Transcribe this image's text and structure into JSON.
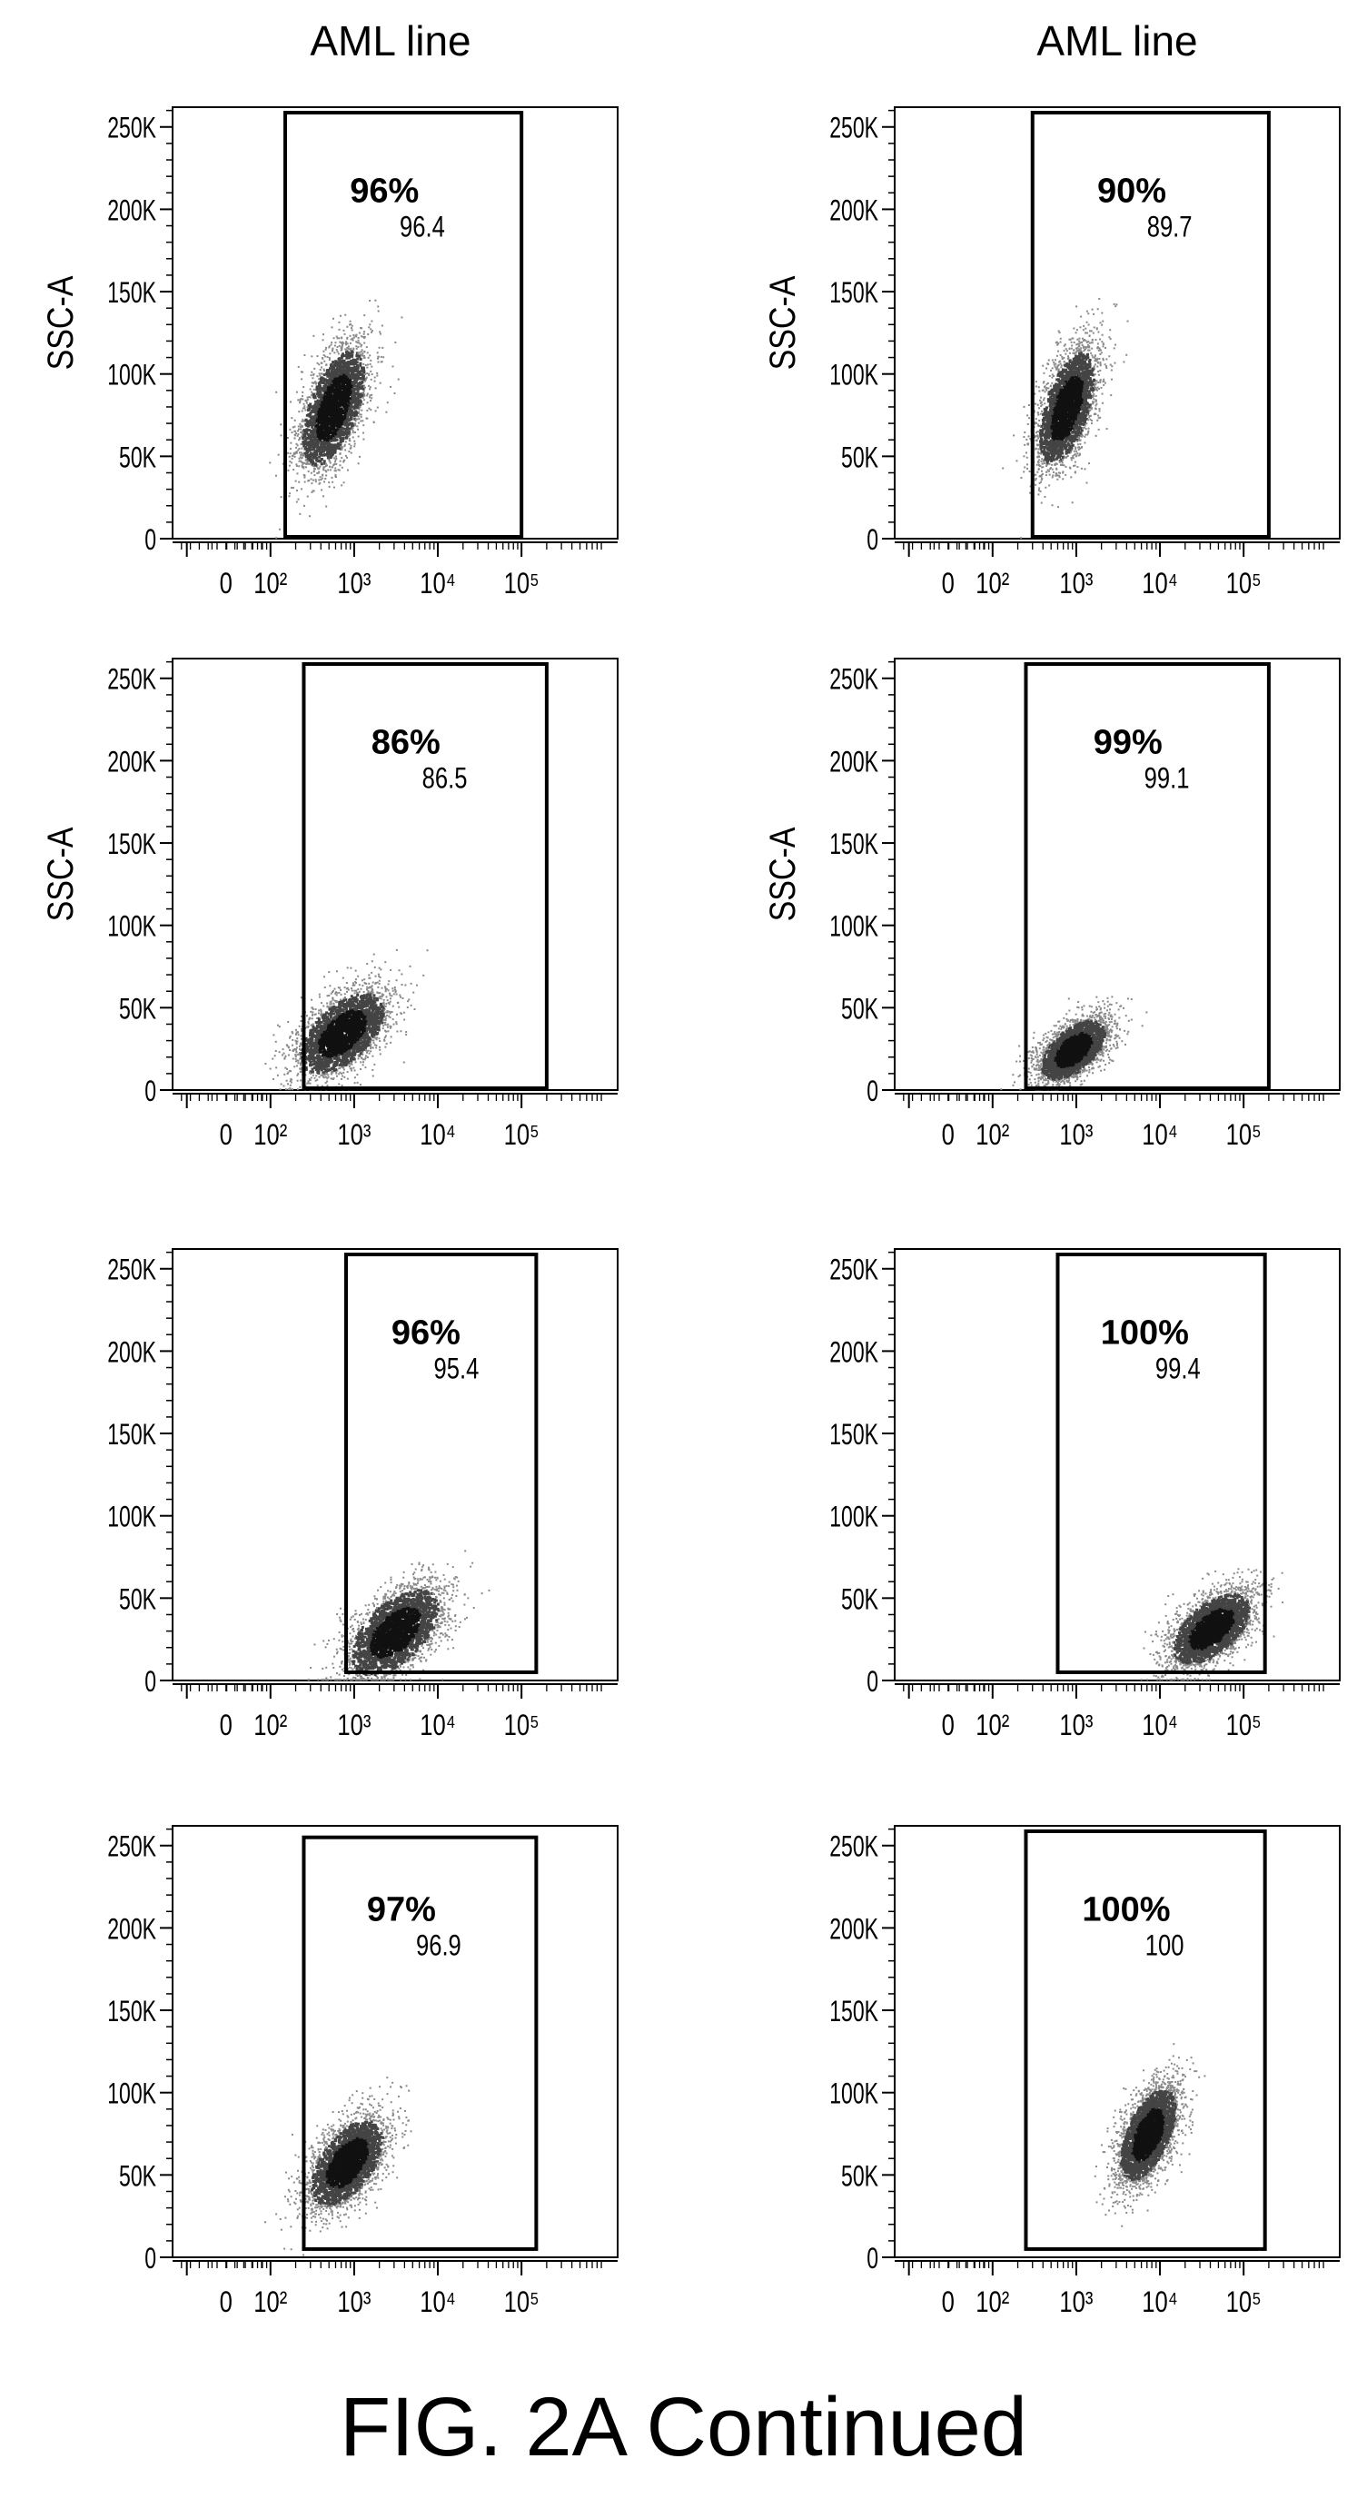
{
  "column_titles": [
    "AML line",
    "AML line"
  ],
  "figure_caption": "FIG. 2A Continued",
  "chart_data": [
    {
      "type": "scatter",
      "row": 1,
      "col": 1,
      "ylabel": "SSC-A",
      "yticks": [
        "0",
        "50K",
        "100K",
        "150K",
        "200K",
        "250K"
      ],
      "xticks": [
        "0",
        "10²",
        "10³",
        "10⁴",
        "10⁵"
      ],
      "gate": {
        "x": [
          150,
          100000
        ],
        "y": [
          0,
          262000
        ]
      },
      "gate_percent": "96%",
      "gate_value": "96.4",
      "cluster": {
        "x": [
          150,
          2000
        ],
        "y": [
          28000,
          135000
        ],
        "center": [
          550,
          80000
        ]
      }
    },
    {
      "type": "scatter",
      "row": 1,
      "col": 2,
      "ylabel": "SSC-A",
      "yticks": [
        "0",
        "50K",
        "100K",
        "150K",
        "200K",
        "250K"
      ],
      "xticks": [
        "0",
        "10²",
        "10³",
        "10⁴",
        "10⁵"
      ],
      "gate": {
        "x": [
          300,
          200000
        ],
        "y": [
          0,
          262000
        ]
      },
      "gate_percent": "90%",
      "gate_value": "89.7",
      "cluster": {
        "x": [
          220,
          2200
        ],
        "y": [
          35000,
          140000
        ],
        "center": [
          750,
          80000
        ]
      }
    },
    {
      "type": "scatter",
      "row": 2,
      "col": 1,
      "ylabel": "SSC-A",
      "yticks": [
        "0",
        "50K",
        "100K",
        "150K",
        "200K",
        "250K"
      ],
      "xticks": [
        "0",
        "10²",
        "10³",
        "10⁴",
        "10⁵"
      ],
      "gate": {
        "x": [
          250,
          200000
        ],
        "y": [
          0,
          262000
        ]
      },
      "gate_percent": "86%",
      "gate_value": "86.5",
      "cluster": {
        "x": [
          120,
          4000
        ],
        "y": [
          10000,
          85000
        ],
        "center": [
          700,
          35000
        ]
      }
    },
    {
      "type": "scatter",
      "row": 2,
      "col": 2,
      "ylabel": "SSC-A",
      "yticks": [
        "0",
        "50K",
        "100K",
        "150K",
        "200K",
        "250K"
      ],
      "xticks": [
        "0",
        "10²",
        "10³",
        "10⁴",
        "10⁵"
      ],
      "gate": {
        "x": [
          250,
          200000
        ],
        "y": [
          0,
          262000
        ]
      },
      "gate_percent": "99%",
      "gate_value": "99.1",
      "cluster": {
        "x": [
          200,
          3000
        ],
        "y": [
          10000,
          65000
        ],
        "center": [
          900,
          25000
        ]
      }
    },
    {
      "type": "scatter",
      "row": 3,
      "col": 1,
      "ylabel": "",
      "yticks": [
        "0",
        "50K",
        "100K",
        "150K",
        "200K",
        "250K"
      ],
      "xticks": [
        "0",
        "10²",
        "10³",
        "10⁴",
        "10⁵"
      ],
      "gate": {
        "x": [
          800,
          150000
        ],
        "y": [
          5000,
          262000
        ]
      },
      "gate_percent": "96%",
      "gate_value": "95.4",
      "cluster": {
        "x": [
          500,
          20000
        ],
        "y": [
          10000,
          90000
        ],
        "center": [
          3000,
          30000
        ]
      }
    },
    {
      "type": "scatter",
      "row": 3,
      "col": 2,
      "ylabel": "",
      "yticks": [
        "0",
        "50K",
        "100K",
        "150K",
        "200K",
        "250K"
      ],
      "xticks": [
        "0",
        "10²",
        "10³",
        "10⁴",
        "10⁵"
      ],
      "gate": {
        "x": [
          600,
          180000
        ],
        "y": [
          5000,
          262000
        ]
      },
      "gate_percent": "100%",
      "gate_value": "99.4",
      "cluster": {
        "x": [
          8000,
          200000
        ],
        "y": [
          10000,
          75000
        ],
        "center": [
          40000,
          32000
        ]
      }
    },
    {
      "type": "scatter",
      "row": 4,
      "col": 1,
      "ylabel": "",
      "yticks": [
        "0",
        "50K",
        "100K",
        "150K",
        "200K",
        "250K"
      ],
      "xticks": [
        "0",
        "10²",
        "10³",
        "10⁴",
        "10⁵"
      ],
      "gate": {
        "x": [
          250,
          150000
        ],
        "y": [
          5000,
          255000
        ]
      },
      "gate_percent": "97%",
      "gate_value": "96.9",
      "cluster": {
        "x": [
          200,
          4000
        ],
        "y": [
          30000,
          110000
        ],
        "center": [
          800,
          58000
        ]
      }
    },
    {
      "type": "scatter",
      "row": 4,
      "col": 2,
      "ylabel": "",
      "yticks": [
        "0",
        "50K",
        "100K",
        "150K",
        "200K",
        "250K"
      ],
      "xticks": [
        "0",
        "10²",
        "10³",
        "10⁴",
        "10⁵"
      ],
      "gate": {
        "x": [
          250,
          180000
        ],
        "y": [
          5000,
          262000
        ]
      },
      "gate_percent": "100%",
      "gate_value": "100",
      "cluster": {
        "x": [
          2000,
          20000
        ],
        "y": [
          40000,
          125000
        ],
        "center": [
          7000,
          75000
        ]
      }
    }
  ]
}
